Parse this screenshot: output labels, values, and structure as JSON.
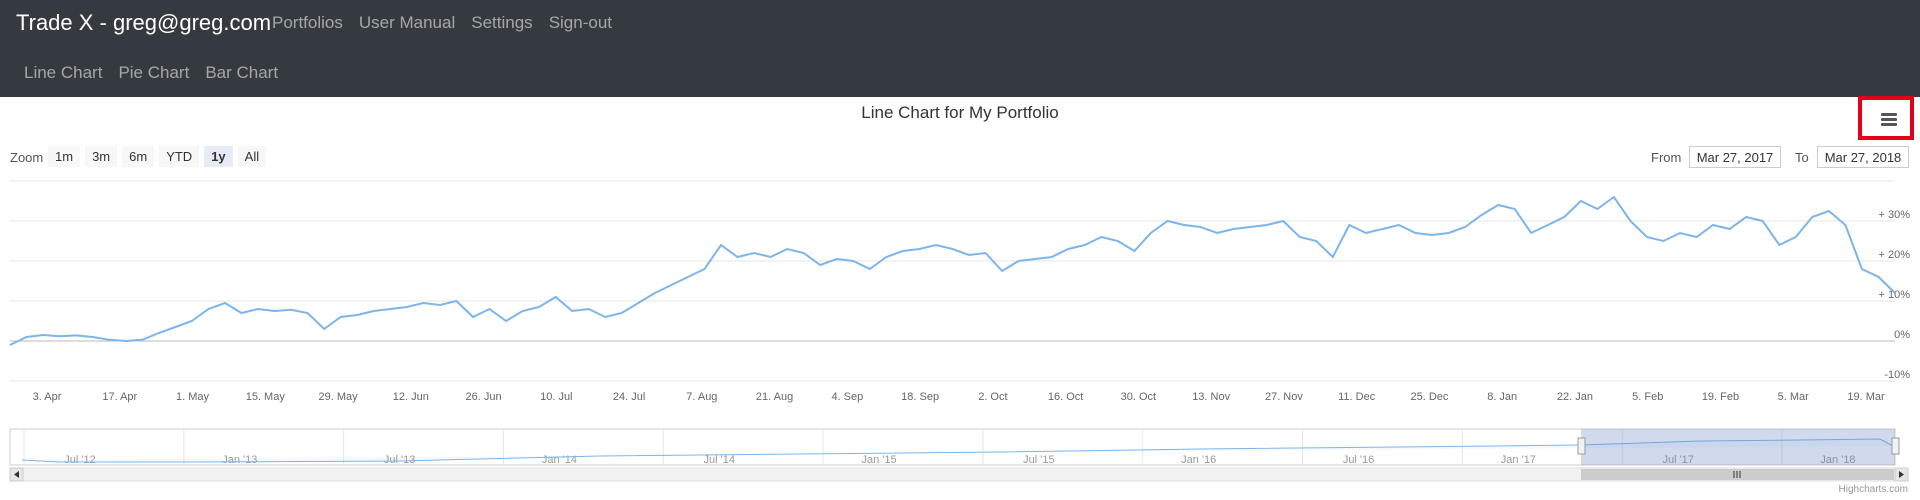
{
  "navbar": {
    "brand": "Trade X - greg@greg.com",
    "links": [
      "Portfolios",
      "User Manual",
      "Settings",
      "Sign-out"
    ],
    "sublinks": [
      "Line Chart",
      "Pie Chart",
      "Bar Chart"
    ]
  },
  "range_selector": {
    "zoom_label": "Zoom",
    "buttons": [
      "1m",
      "3m",
      "6m",
      "YTD",
      "1y",
      "All"
    ],
    "active": "1y",
    "from_label": "From",
    "to_label": "To",
    "from_value": "Mar 27, 2017",
    "to_value": "Mar 27, 2018"
  },
  "credit": "Highcharts.com",
  "colors": {
    "line": "#7cb5ec",
    "navbar_bg": "#343a40",
    "highlight": "#e3001b",
    "navigator_mask": "#ccd6eb"
  },
  "chart_data": {
    "type": "line",
    "title": "Line Chart for My Portfolio",
    "x_ticks": [
      "3. Apr",
      "17. Apr",
      "1. May",
      "15. May",
      "29. May",
      "12. Jun",
      "26. Jun",
      "10. Jul",
      "24. Jul",
      "7. Aug",
      "21. Aug",
      "4. Sep",
      "18. Sep",
      "2. Oct",
      "16. Oct",
      "30. Oct",
      "13. Nov",
      "27. Nov",
      "11. Dec",
      "25. Dec",
      "8. Jan",
      "22. Jan",
      "5. Feb",
      "19. Feb",
      "5. Mar",
      "19. Mar"
    ],
    "y_ticks": [
      "+ 30%",
      "+ 20%",
      "+ 10%",
      "0%",
      "-10%"
    ],
    "ylim": [
      -10,
      40
    ],
    "grid": true,
    "series": [
      {
        "values": [
          -1,
          1,
          1.5,
          1.2,
          1.4,
          1,
          0.3,
          0,
          0.3,
          2,
          3.5,
          5,
          8,
          9.5,
          7,
          8,
          7.5,
          7.8,
          7,
          3,
          6,
          6.5,
          7.5,
          8,
          8.5,
          9.5,
          9,
          10,
          6,
          8,
          5,
          7.5,
          8.5,
          11,
          7.5,
          8,
          6,
          7,
          9.5,
          12,
          14,
          16,
          18,
          24,
          21,
          22,
          21,
          23,
          22,
          19,
          20.5,
          20,
          18,
          21,
          22.5,
          23,
          24,
          23,
          21.5,
          22,
          17.5,
          20,
          20.5,
          21,
          23,
          24,
          26,
          25,
          22.5,
          27,
          30,
          29,
          28.5,
          27,
          28,
          28.5,
          29,
          30,
          26,
          25,
          21,
          29,
          27,
          28,
          29,
          27,
          26.5,
          27,
          28.5,
          31.5,
          34,
          33,
          27,
          29,
          31,
          35,
          33,
          36,
          30,
          26,
          25,
          27,
          26,
          29,
          28,
          31,
          30,
          24,
          26,
          31,
          32.5,
          29,
          18,
          16,
          12
        ]
      }
    ],
    "navigator_ticks": [
      "Jul '12",
      "Jan '13",
      "Jul '13",
      "Jan '14",
      "Jul '14",
      "Jan '15",
      "Jul '15",
      "Jan '16",
      "Jul '16",
      "Jan '17",
      "Jul '17",
      "Jan '18"
    ]
  }
}
